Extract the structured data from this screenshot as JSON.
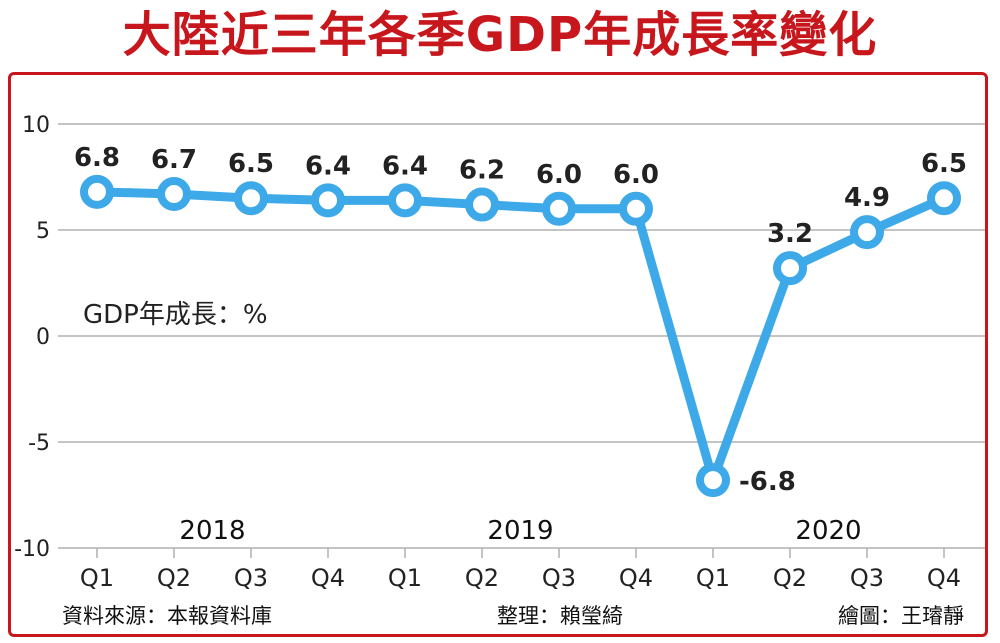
{
  "chart_data": {
    "type": "line",
    "title": "大陸近三年各季GDP年成長率變化",
    "unit_label": "GDP年成長：%",
    "categories": [
      "Q1",
      "Q2",
      "Q3",
      "Q4",
      "Q1",
      "Q2",
      "Q3",
      "Q4",
      "Q1",
      "Q2",
      "Q3",
      "Q4"
    ],
    "years": [
      {
        "label": "2018",
        "from": 0,
        "to": 3
      },
      {
        "label": "2019",
        "from": 4,
        "to": 7
      },
      {
        "label": "2020",
        "from": 8,
        "to": 11
      }
    ],
    "series": [
      {
        "values": [
          6.8,
          6.7,
          6.5,
          6.4,
          6.4,
          6.2,
          6.0,
          6.0,
          -6.8,
          3.2,
          4.9,
          6.5
        ],
        "labels": [
          "6.8",
          "6.7",
          "6.5",
          "6.4",
          "6.4",
          "6.2",
          "6.0",
          "6.0",
          "-6.8",
          "3.2",
          "4.9",
          "6.5"
        ]
      }
    ],
    "yticks": [
      "10",
      "5",
      "0",
      "-5",
      "-10"
    ],
    "ylim": [
      -10,
      10
    ],
    "grid": "horizontal",
    "line_color": "#3da9e8"
  },
  "footer": {
    "source": "資料來源：本報資料庫",
    "editor": "整理：賴瑩綺",
    "artist": "繪圖：王璿靜"
  },
  "colors": {
    "title": "#c8161d",
    "frame": "#c8161d",
    "grid": "#b0b0b0"
  }
}
